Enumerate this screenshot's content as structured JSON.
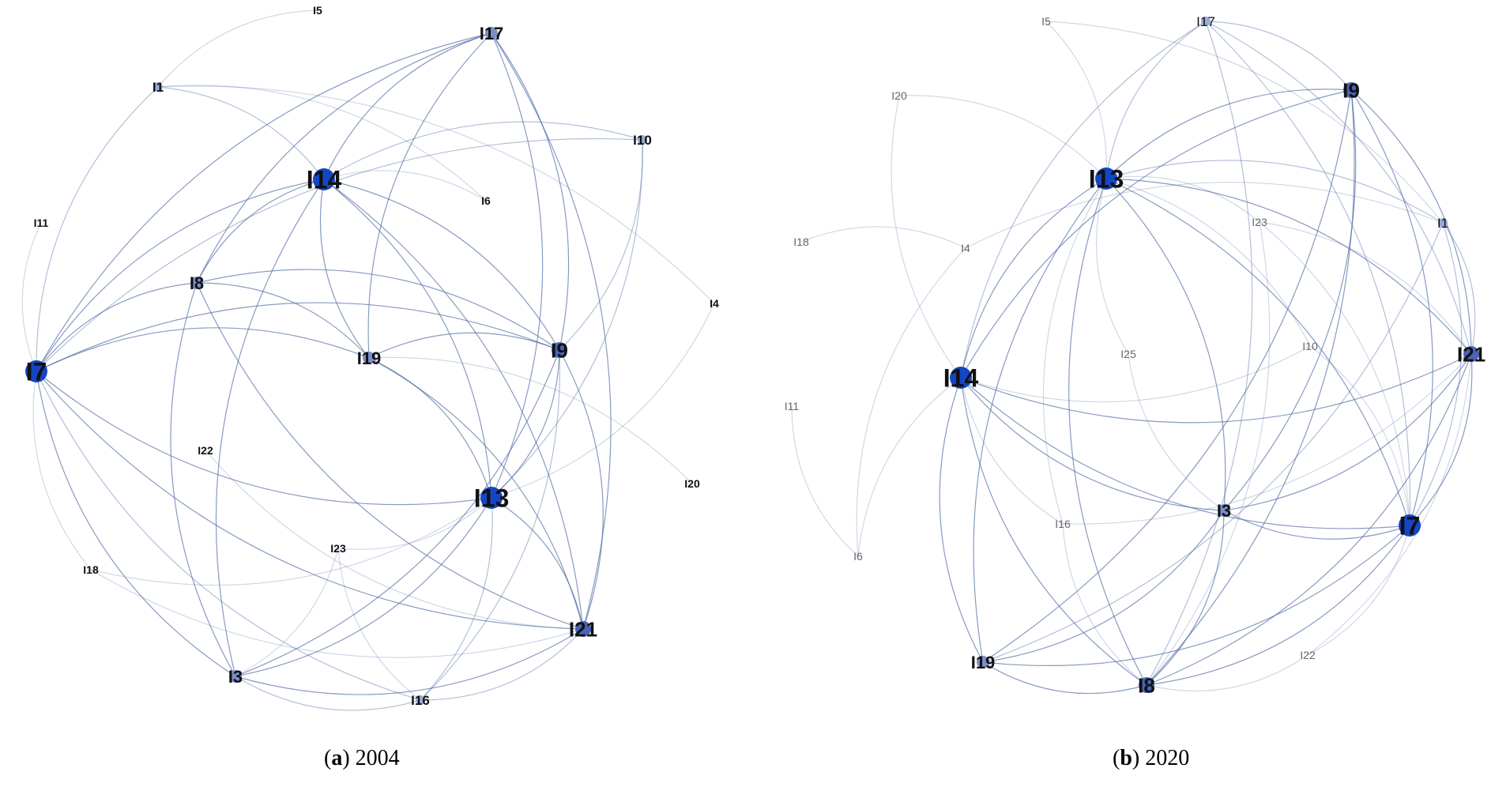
{
  "panels": [
    {
      "id": "a",
      "caption_letter": "a",
      "caption_text": "2004",
      "nodes": [
        {
          "id": "I5",
          "label": "I5",
          "w": 0
        },
        {
          "id": "I1",
          "label": "I1",
          "w": 1
        },
        {
          "id": "I17",
          "label": "I17",
          "w": 2
        },
        {
          "id": "I10",
          "label": "I10",
          "w": 1
        },
        {
          "id": "I14",
          "label": "I14",
          "w": 4
        },
        {
          "id": "I6",
          "label": "I6",
          "w": 0
        },
        {
          "id": "I11",
          "label": "I11",
          "w": 0
        },
        {
          "id": "I8",
          "label": "I8",
          "w": 2
        },
        {
          "id": "I4",
          "label": "I4",
          "w": 0
        },
        {
          "id": "I19",
          "label": "I19",
          "w": 2
        },
        {
          "id": "I9",
          "label": "I9",
          "w": 3
        },
        {
          "id": "I7",
          "label": "I7",
          "w": 4
        },
        {
          "id": "I22",
          "label": "I22",
          "w": 0
        },
        {
          "id": "I13",
          "label": "I13",
          "w": 4
        },
        {
          "id": "I20",
          "label": "I20",
          "w": 0
        },
        {
          "id": "I23",
          "label": "I23",
          "w": 0
        },
        {
          "id": "I18",
          "label": "I18",
          "w": 0
        },
        {
          "id": "I21",
          "label": "I21",
          "w": 3
        },
        {
          "id": "I3",
          "label": "I3",
          "w": 2
        },
        {
          "id": "I16",
          "label": "I16",
          "w": 1
        }
      ],
      "edges": [
        [
          "I1",
          "I5"
        ],
        [
          "I1",
          "I7"
        ],
        [
          "I1",
          "I14"
        ],
        [
          "I1",
          "I6"
        ],
        [
          "I1",
          "I4"
        ],
        [
          "I11",
          "I7"
        ],
        [
          "I17",
          "I14"
        ],
        [
          "I17",
          "I9"
        ],
        [
          "I17",
          "I13"
        ],
        [
          "I17",
          "I7"
        ],
        [
          "I17",
          "I8"
        ],
        [
          "I17",
          "I19"
        ],
        [
          "I17",
          "I21"
        ],
        [
          "I10",
          "I14"
        ],
        [
          "I10",
          "I13"
        ],
        [
          "I10",
          "I9"
        ],
        [
          "I10",
          "I7"
        ],
        [
          "I14",
          "I7"
        ],
        [
          "I14",
          "I8"
        ],
        [
          "I14",
          "I9"
        ],
        [
          "I14",
          "I13"
        ],
        [
          "I14",
          "I19"
        ],
        [
          "I14",
          "I6"
        ],
        [
          "I14",
          "I3"
        ],
        [
          "I14",
          "I21"
        ],
        [
          "I8",
          "I9"
        ],
        [
          "I8",
          "I19"
        ],
        [
          "I8",
          "I21"
        ],
        [
          "I8",
          "I3"
        ],
        [
          "I8",
          "I7"
        ],
        [
          "I7",
          "I9"
        ],
        [
          "I7",
          "I13"
        ],
        [
          "I7",
          "I19"
        ],
        [
          "I7",
          "I21"
        ],
        [
          "I7",
          "I3"
        ],
        [
          "I7",
          "I16"
        ],
        [
          "I9",
          "I13"
        ],
        [
          "I9",
          "I21"
        ],
        [
          "I9",
          "I19"
        ],
        [
          "I9",
          "I3"
        ],
        [
          "I9",
          "I16"
        ],
        [
          "I19",
          "I13"
        ],
        [
          "I19",
          "I20"
        ],
        [
          "I19",
          "I21"
        ],
        [
          "I13",
          "I21"
        ],
        [
          "I13",
          "I3"
        ],
        [
          "I13",
          "I23"
        ],
        [
          "I13",
          "I18"
        ],
        [
          "I13",
          "I16"
        ],
        [
          "I13",
          "I4"
        ],
        [
          "I22",
          "I21"
        ],
        [
          "I23",
          "I3"
        ],
        [
          "I23",
          "I16"
        ],
        [
          "I18",
          "I7"
        ],
        [
          "I18",
          "I21"
        ],
        [
          "I21",
          "I3"
        ],
        [
          "I21",
          "I16"
        ],
        [
          "I3",
          "I16"
        ]
      ]
    },
    {
      "id": "b",
      "caption_letter": "b",
      "caption_text": "2020",
      "nodes": [
        {
          "id": "I5",
          "label": "I5",
          "w": 0
        },
        {
          "id": "I17",
          "label": "I17",
          "w": 1
        },
        {
          "id": "I9",
          "label": "I9",
          "w": 3
        },
        {
          "id": "I20",
          "label": "I20",
          "w": 0
        },
        {
          "id": "I13",
          "label": "I13",
          "w": 4
        },
        {
          "id": "I23",
          "label": "I23",
          "w": 0
        },
        {
          "id": "I1",
          "label": "I1",
          "w": 1
        },
        {
          "id": "I18",
          "label": "I18",
          "w": 0
        },
        {
          "id": "I4",
          "label": "I4",
          "w": 0
        },
        {
          "id": "I25",
          "label": "I25",
          "w": 0
        },
        {
          "id": "I10",
          "label": "I10",
          "w": 0
        },
        {
          "id": "I21",
          "label": "I21",
          "w": 3
        },
        {
          "id": "I11",
          "label": "I11",
          "w": 0
        },
        {
          "id": "I14",
          "label": "I14",
          "w": 4
        },
        {
          "id": "I16",
          "label": "I16",
          "w": 0
        },
        {
          "id": "I3",
          "label": "I3",
          "w": 2
        },
        {
          "id": "I7",
          "label": "I7",
          "w": 4
        },
        {
          "id": "I6",
          "label": "I6",
          "w": 0
        },
        {
          "id": "I19",
          "label": "I19",
          "w": 2
        },
        {
          "id": "I22",
          "label": "I22",
          "w": 0
        },
        {
          "id": "I8",
          "label": "I8",
          "w": 3
        }
      ],
      "edges": [
        [
          "I5",
          "I13"
        ],
        [
          "I5",
          "I1"
        ],
        [
          "I17",
          "I13"
        ],
        [
          "I17",
          "I9"
        ],
        [
          "I17",
          "I7"
        ],
        [
          "I17",
          "I8"
        ],
        [
          "I17",
          "I14"
        ],
        [
          "I17",
          "I21"
        ],
        [
          "I20",
          "I13"
        ],
        [
          "I20",
          "I14"
        ],
        [
          "I9",
          "I13"
        ],
        [
          "I9",
          "I14"
        ],
        [
          "I9",
          "I7"
        ],
        [
          "I9",
          "I3"
        ],
        [
          "I9",
          "I19"
        ],
        [
          "I9",
          "I8"
        ],
        [
          "I9",
          "I21"
        ],
        [
          "I13",
          "I14"
        ],
        [
          "I13",
          "I23"
        ],
        [
          "I13",
          "I21"
        ],
        [
          "I13",
          "I7"
        ],
        [
          "I13",
          "I3"
        ],
        [
          "I13",
          "I8"
        ],
        [
          "I13",
          "I19"
        ],
        [
          "I13",
          "I16"
        ],
        [
          "I13",
          "I10"
        ],
        [
          "I23",
          "I7"
        ],
        [
          "I23",
          "I21"
        ],
        [
          "I23",
          "I8"
        ],
        [
          "I1",
          "I4"
        ],
        [
          "I1",
          "I7"
        ],
        [
          "I1",
          "I21"
        ],
        [
          "I1",
          "I19"
        ],
        [
          "I1",
          "I13"
        ],
        [
          "I18",
          "I4"
        ],
        [
          "I4",
          "I6"
        ],
        [
          "I11",
          "I6"
        ],
        [
          "I6",
          "I14"
        ],
        [
          "I25",
          "I13"
        ],
        [
          "I25",
          "I3"
        ],
        [
          "I10",
          "I14"
        ],
        [
          "I10",
          "I7"
        ],
        [
          "I21",
          "I14"
        ],
        [
          "I21",
          "I7"
        ],
        [
          "I21",
          "I3"
        ],
        [
          "I21",
          "I8"
        ],
        [
          "I21",
          "I16"
        ],
        [
          "I21",
          "I22"
        ],
        [
          "I14",
          "I7"
        ],
        [
          "I14",
          "I3"
        ],
        [
          "I14",
          "I16"
        ],
        [
          "I14",
          "I19"
        ],
        [
          "I14",
          "I8"
        ],
        [
          "I3",
          "I7"
        ],
        [
          "I3",
          "I19"
        ],
        [
          "I3",
          "I8"
        ],
        [
          "I7",
          "I8"
        ],
        [
          "I7",
          "I22"
        ],
        [
          "I7",
          "I19"
        ],
        [
          "I19",
          "I8"
        ],
        [
          "I16",
          "I8"
        ],
        [
          "I22",
          "I8"
        ]
      ]
    }
  ]
}
